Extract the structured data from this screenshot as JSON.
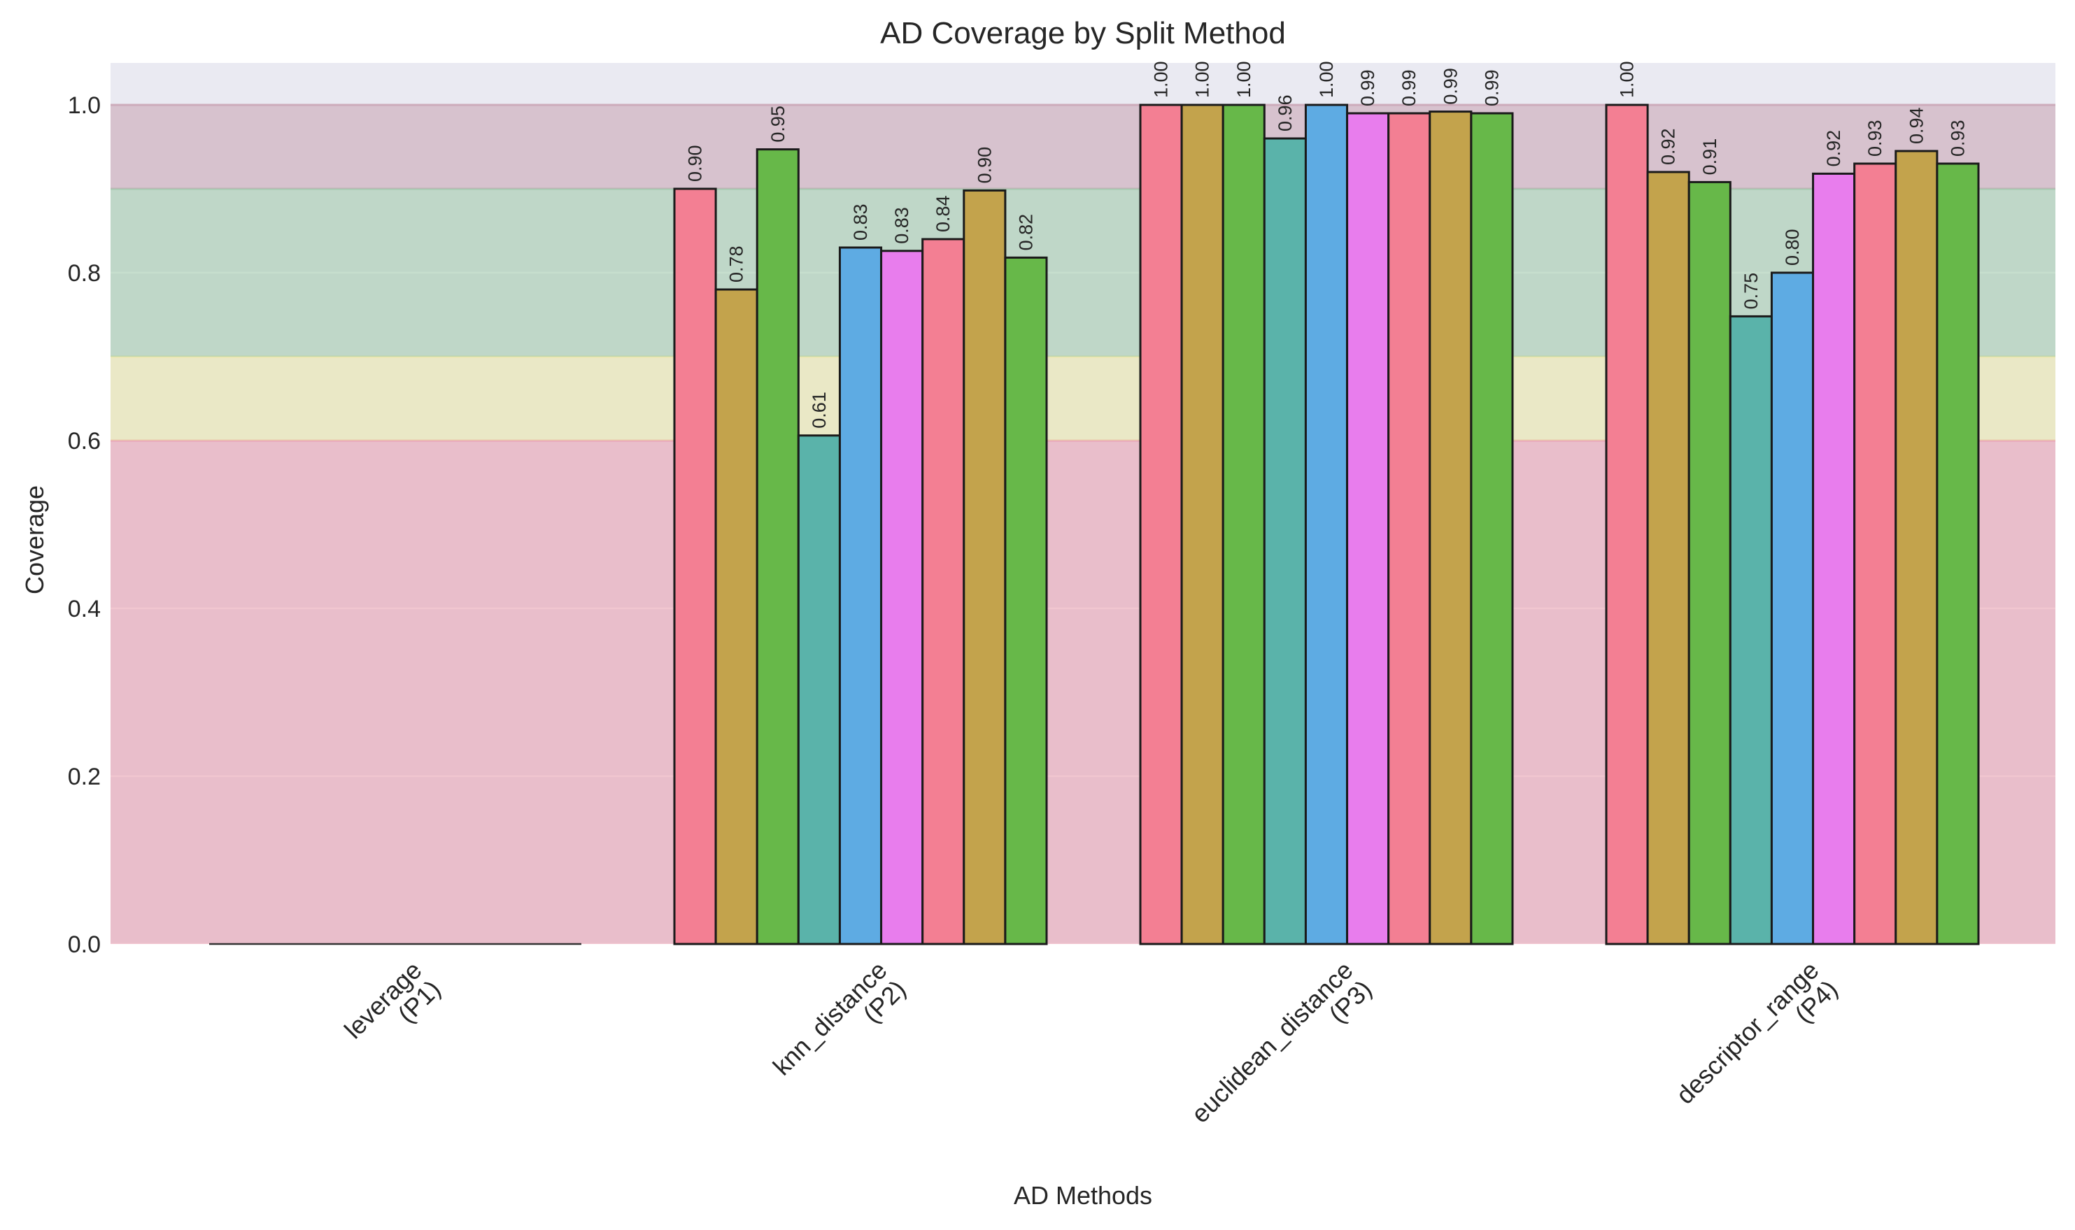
{
  "chart_data": {
    "type": "bar",
    "title": "AD Coverage by Split Method",
    "xlabel": "AD Methods",
    "ylabel": "Coverage",
    "ylim": [
      0,
      1.05
    ],
    "yticks": [
      0.0,
      0.2,
      0.4,
      0.6,
      0.8,
      1.0
    ],
    "ytick_labels": [
      "0.0",
      "0.2",
      "0.4",
      "0.6",
      "0.8",
      "1.0"
    ],
    "grid": true,
    "legend": "none",
    "categories": [
      {
        "line1": "leverage",
        "line2": "(P1)"
      },
      {
        "line1": "knn_distance",
        "line2": "(P2)"
      },
      {
        "line1": "euclidean_distance",
        "line2": "(P3)"
      },
      {
        "line1": "descriptor_range",
        "line2": "(P4)"
      }
    ],
    "bars_per_group": 9,
    "bar_colors": [
      "#f37f93",
      "#c3a34c",
      "#67b849",
      "#5ab3aa",
      "#5eabe3",
      "#e87ded",
      "#f37f93",
      "#c3a34c",
      "#67b849"
    ],
    "values": [
      [
        0,
        0,
        0,
        0,
        0,
        0,
        0,
        0,
        0
      ],
      [
        0.9,
        0.78,
        0.947,
        0.606,
        0.83,
        0.826,
        0.84,
        0.898,
        0.818
      ],
      [
        1.0,
        1.0,
        1.0,
        0.96,
        1.0,
        0.99,
        0.99,
        0.992,
        0.99
      ],
      [
        1.0,
        0.92,
        0.908,
        0.748,
        0.8,
        0.918,
        0.93,
        0.945,
        0.93
      ]
    ],
    "data_labels": [
      [
        "",
        "",
        "",
        "",
        "",
        "",
        "",
        "",
        ""
      ],
      [
        "0.90",
        "0.78",
        "0.95",
        "0.61",
        "0.83",
        "0.83",
        "0.84",
        "0.90",
        "0.82"
      ],
      [
        "1.00",
        "1.00",
        "1.00",
        "0.96",
        "1.00",
        "0.99",
        "0.99",
        "0.99",
        "0.99"
      ],
      [
        "1.00",
        "0.92",
        "0.91",
        "0.75",
        "0.80",
        "0.92",
        "0.93",
        "0.94",
        "0.93"
      ]
    ],
    "bands": [
      {
        "from": 0.0,
        "to": 0.6,
        "color": "#e8a0b1"
      },
      {
        "from": 0.6,
        "to": 0.7,
        "color": "#e9e6a8"
      },
      {
        "from": 0.7,
        "to": 0.9,
        "color": "#a2c9ac"
      },
      {
        "from": 0.9,
        "to": 1.0,
        "color": "#c9a6b6"
      }
    ]
  }
}
